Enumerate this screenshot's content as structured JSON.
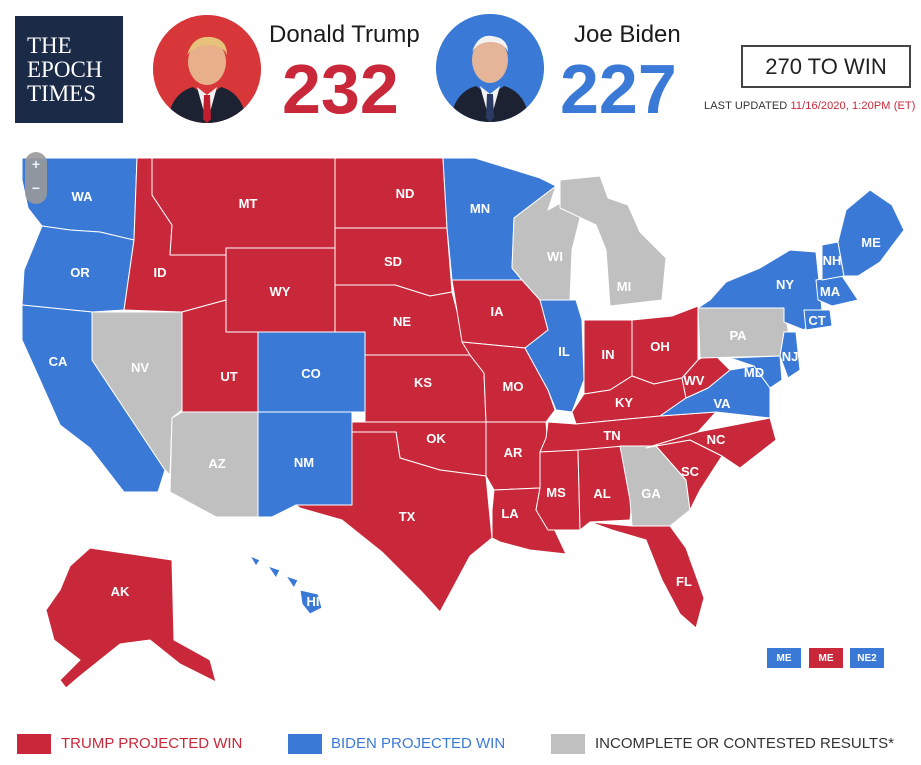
{
  "header": {
    "logo_lines": [
      "THE",
      "EPOCH",
      "TIMES"
    ],
    "candidates": [
      {
        "name": "Donald Trump",
        "electoral_votes": "232",
        "color": "#c8283a"
      },
      {
        "name": "Joe Biden",
        "electoral_votes": "227",
        "color": "#3a7ad6"
      }
    ],
    "to_win_label": "270 TO WIN",
    "last_updated_label": "LAST UPDATED",
    "last_updated_value": "11/16/2020, 1:20PM (ET)"
  },
  "zoom": {
    "in": "+",
    "out": "−"
  },
  "colors": {
    "trump": "#c8283a",
    "biden": "#3a7ad6",
    "contested": "#c0c0c0"
  },
  "states": {
    "WA": "biden",
    "OR": "biden",
    "CA": "biden",
    "NV": "contested",
    "ID": "trump",
    "MT": "trump",
    "WY": "trump",
    "UT": "trump",
    "AZ": "contested",
    "CO": "biden",
    "NM": "biden",
    "ND": "trump",
    "SD": "trump",
    "NE": "trump",
    "KS": "trump",
    "OK": "trump",
    "TX": "trump",
    "MN": "biden",
    "IA": "trump",
    "MO": "trump",
    "AR": "trump",
    "LA": "trump",
    "WI": "contested",
    "IL": "biden",
    "MI": "contested",
    "IN": "trump",
    "OH": "trump",
    "KY": "trump",
    "TN": "trump",
    "MS": "trump",
    "AL": "trump",
    "GA": "contested",
    "FL": "trump",
    "SC": "trump",
    "NC": "trump",
    "VA": "biden",
    "WV": "trump",
    "PA": "contested",
    "NY": "biden",
    "ME": "biden",
    "NH": "biden",
    "MA": "biden",
    "CT": "biden",
    "NJ": "biden",
    "MD": "biden",
    "AK": "trump",
    "HI": "biden"
  },
  "state_labels": [
    "WA",
    "OR",
    "CA",
    "NV",
    "ID",
    "MT",
    "WY",
    "UT",
    "AZ",
    "CO",
    "NM",
    "ND",
    "SD",
    "NE",
    "KS",
    "OK",
    "TX",
    "MN",
    "IA",
    "MO",
    "AR",
    "LA",
    "WI",
    "IL",
    "MI",
    "IN",
    "OH",
    "KY",
    "TN",
    "MS",
    "AL",
    "GA",
    "FL",
    "SC",
    "NC",
    "VA",
    "WV",
    "PA",
    "NY",
    "ME",
    "NH",
    "MA",
    "CT",
    "NJ",
    "MD",
    "AK",
    "HI"
  ],
  "districts": [
    {
      "label": "ME",
      "winner": "biden"
    },
    {
      "label": "ME",
      "winner": "trump"
    },
    {
      "label": "NE2",
      "winner": "biden"
    }
  ],
  "legend": [
    {
      "label": "TRUMP PROJECTED WIN",
      "color": "#c8283a"
    },
    {
      "label": "BIDEN PROJECTED WIN",
      "color": "#3a7ad6"
    },
    {
      "label": "INCOMPLETE OR CONTESTED RESULTS*",
      "color": "#c0c0c0"
    }
  ]
}
